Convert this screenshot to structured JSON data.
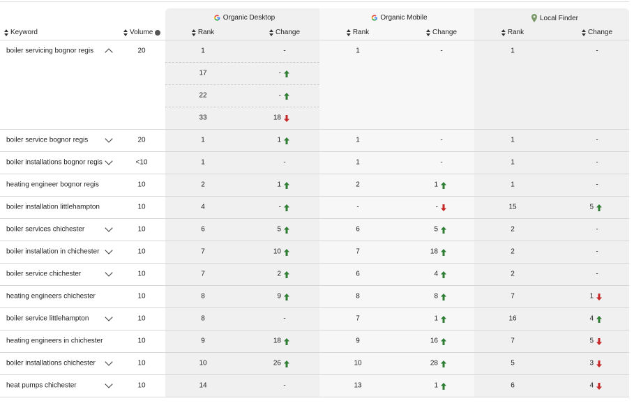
{
  "header": {
    "keyword": "Keyword",
    "volume": "Volume",
    "groups": [
      {
        "label": "Organic Desktop",
        "icon": "google-icon"
      },
      {
        "label": "Organic Mobile",
        "icon": "google-icon"
      },
      {
        "label": "Local Finder",
        "icon": "map-pin-icon"
      }
    ],
    "rank": "Rank",
    "change": "Change"
  },
  "colors": {
    "up": "#2e7d32",
    "down": "#c62828"
  },
  "rows": [
    {
      "keyword": "boiler servicing bognor regis",
      "chevron": "up",
      "volume": "20",
      "desktop": [
        {
          "rank": "1",
          "change": "-",
          "dir": ""
        },
        {
          "rank": "17",
          "change": "-",
          "dir": "up"
        },
        {
          "rank": "22",
          "change": "-",
          "dir": "up"
        },
        {
          "rank": "33",
          "change": "18",
          "dir": "down"
        }
      ],
      "mobile": {
        "rank": "1",
        "change": "-",
        "dir": ""
      },
      "local": {
        "rank": "1",
        "change": "-",
        "dir": ""
      }
    },
    {
      "keyword": "boiler service bognor regis",
      "chevron": "down",
      "volume": "20",
      "desktop": [
        {
          "rank": "1",
          "change": "1",
          "dir": "up"
        }
      ],
      "mobile": {
        "rank": "1",
        "change": "-",
        "dir": ""
      },
      "local": {
        "rank": "1",
        "change": "-",
        "dir": ""
      }
    },
    {
      "keyword": "boiler installations bognor regis",
      "chevron": "down",
      "volume": "<10",
      "desktop": [
        {
          "rank": "1",
          "change": "-",
          "dir": ""
        }
      ],
      "mobile": {
        "rank": "1",
        "change": "-",
        "dir": ""
      },
      "local": {
        "rank": "1",
        "change": "-",
        "dir": ""
      }
    },
    {
      "keyword": "heating engineer bognor regis",
      "chevron": "",
      "volume": "10",
      "desktop": [
        {
          "rank": "2",
          "change": "1",
          "dir": "up"
        }
      ],
      "mobile": {
        "rank": "2",
        "change": "1",
        "dir": "up"
      },
      "local": {
        "rank": "1",
        "change": "-",
        "dir": ""
      }
    },
    {
      "keyword": "boiler installation littlehampton",
      "chevron": "",
      "volume": "10",
      "desktop": [
        {
          "rank": "4",
          "change": "-",
          "dir": "up"
        }
      ],
      "mobile": {
        "rank": "-",
        "change": "-",
        "dir": "down"
      },
      "local": {
        "rank": "15",
        "change": "5",
        "dir": "up"
      }
    },
    {
      "keyword": "boiler services chichester",
      "chevron": "down",
      "volume": "10",
      "desktop": [
        {
          "rank": "6",
          "change": "5",
          "dir": "up"
        }
      ],
      "mobile": {
        "rank": "6",
        "change": "5",
        "dir": "up"
      },
      "local": {
        "rank": "2",
        "change": "-",
        "dir": ""
      }
    },
    {
      "keyword": "boiler installation in chichester",
      "chevron": "down",
      "volume": "10",
      "desktop": [
        {
          "rank": "7",
          "change": "10",
          "dir": "up"
        }
      ],
      "mobile": {
        "rank": "7",
        "change": "18",
        "dir": "up"
      },
      "local": {
        "rank": "2",
        "change": "-",
        "dir": ""
      }
    },
    {
      "keyword": "boiler service chichester",
      "chevron": "down",
      "volume": "10",
      "desktop": [
        {
          "rank": "7",
          "change": "2",
          "dir": "up"
        }
      ],
      "mobile": {
        "rank": "6",
        "change": "4",
        "dir": "up"
      },
      "local": {
        "rank": "2",
        "change": "-",
        "dir": ""
      }
    },
    {
      "keyword": "heating engineers chichester",
      "chevron": "",
      "volume": "10",
      "desktop": [
        {
          "rank": "8",
          "change": "9",
          "dir": "up"
        }
      ],
      "mobile": {
        "rank": "8",
        "change": "8",
        "dir": "up"
      },
      "local": {
        "rank": "7",
        "change": "1",
        "dir": "down"
      }
    },
    {
      "keyword": "boiler service littlehampton",
      "chevron": "down",
      "volume": "10",
      "desktop": [
        {
          "rank": "8",
          "change": "-",
          "dir": ""
        }
      ],
      "mobile": {
        "rank": "7",
        "change": "1",
        "dir": "up"
      },
      "local": {
        "rank": "16",
        "change": "4",
        "dir": "up"
      }
    },
    {
      "keyword": "heating engineers in chichester",
      "chevron": "",
      "volume": "10",
      "desktop": [
        {
          "rank": "9",
          "change": "18",
          "dir": "up"
        }
      ],
      "mobile": {
        "rank": "9",
        "change": "16",
        "dir": "up"
      },
      "local": {
        "rank": "7",
        "change": "5",
        "dir": "down"
      }
    },
    {
      "keyword": "boiler installations chichester",
      "chevron": "down",
      "volume": "10",
      "desktop": [
        {
          "rank": "10",
          "change": "26",
          "dir": "up"
        }
      ],
      "mobile": {
        "rank": "10",
        "change": "28",
        "dir": "up"
      },
      "local": {
        "rank": "5",
        "change": "3",
        "dir": "down"
      }
    },
    {
      "keyword": "heat pumps chichester",
      "chevron": "down",
      "volume": "10",
      "desktop": [
        {
          "rank": "14",
          "change": "-",
          "dir": ""
        }
      ],
      "mobile": {
        "rank": "13",
        "change": "1",
        "dir": "up"
      },
      "local": {
        "rank": "6",
        "change": "4",
        "dir": "down"
      }
    }
  ]
}
